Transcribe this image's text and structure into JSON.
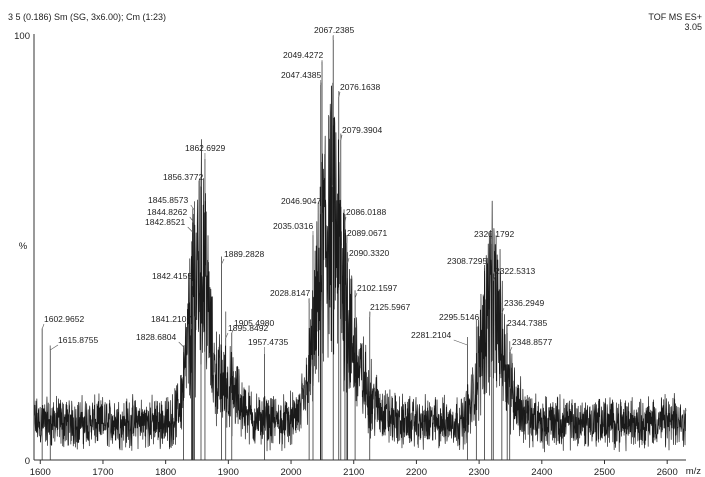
{
  "header": {
    "left": "3 5 (0.186) Sm (SG, 3x6.00); Cm (1:23)",
    "right": "TOF MS ES+",
    "right_sub": "3.05"
  },
  "chart_data": {
    "type": "line",
    "title": "",
    "xlabel": "m/z",
    "ylabel": "%",
    "xlim": [
      1590,
      2630
    ],
    "ylim": [
      0,
      100
    ],
    "x_ticks": [
      "1600",
      "1700",
      "1800",
      "1900",
      "2000",
      "2100",
      "2200",
      "2300",
      "2400",
      "2500",
      "2600"
    ],
    "y_ticks": [
      "0",
      "100"
    ],
    "grid": false,
    "peaks": [
      {
        "mz": 1602.9652,
        "label": "1602.9652",
        "intensity": 31
      },
      {
        "mz": 1615.8755,
        "label": "1615.8755",
        "intensity": 27
      },
      {
        "mz": 1828.6804,
        "label": "1828.6804",
        "intensity": 27
      },
      {
        "mz": 1841.2107,
        "label": "1841.2107",
        "intensity": 31
      },
      {
        "mz": 1842.4155,
        "label": "1842.4155",
        "intensity": 41
      },
      {
        "mz": 1842.8521,
        "label": "1842.8521",
        "intensity": 56
      },
      {
        "mz": 1844.8262,
        "label": "1844.8262",
        "intensity": 58
      },
      {
        "mz": 1845.8573,
        "label": "1845.8573",
        "intensity": 61
      },
      {
        "mz": 1856.3772,
        "label": "1856.3772",
        "intensity": 66
      },
      {
        "mz": 1862.6929,
        "label": "1862.6929",
        "intensity": 71
      },
      {
        "mz": 1889.2828,
        "label": "1889.2828",
        "intensity": 48
      },
      {
        "mz": 1895.8492,
        "label": "1895.8492",
        "intensity": 35
      },
      {
        "mz": 1905.498,
        "label": "1905.4980",
        "intensity": 30
      },
      {
        "mz": 1957.4735,
        "label": "1957.4735",
        "intensity": 25
      },
      {
        "mz": 2028.8147,
        "label": "2028.8147",
        "intensity": 38
      },
      {
        "mz": 2035.0316,
        "label": "2035.0316",
        "intensity": 53
      },
      {
        "mz": 2046.9047,
        "label": "2046.9047",
        "intensity": 58
      },
      {
        "mz": 2047.4385,
        "label": "2047.4385",
        "intensity": 89
      },
      {
        "mz": 2049.4272,
        "label": "2049.4272",
        "intensity": 94
      },
      {
        "mz": 2067.2385,
        "label": "2067.2385",
        "intensity": 100
      },
      {
        "mz": 2076.1638,
        "label": "2076.1638",
        "intensity": 87
      },
      {
        "mz": 2079.3904,
        "label": "2079.3904",
        "intensity": 77
      },
      {
        "mz": 2086.0188,
        "label": "2086.0188",
        "intensity": 58
      },
      {
        "mz": 2089.0671,
        "label": "2089.0671",
        "intensity": 53
      },
      {
        "mz": 2090.332,
        "label": "2090.3320",
        "intensity": 49
      },
      {
        "mz": 2102.1597,
        "label": "2102.1597",
        "intensity": 40
      },
      {
        "mz": 2125.5967,
        "label": "2125.5967",
        "intensity": 35
      },
      {
        "mz": 2281.2104,
        "label": "2281.2104",
        "intensity": 29
      },
      {
        "mz": 2295.5146,
        "label": "2295.5146",
        "intensity": 33
      },
      {
        "mz": 2308.7295,
        "label": "2308.7295",
        "intensity": 46
      },
      {
        "mz": 2320.1792,
        "label": "2320.1792",
        "intensity": 52
      },
      {
        "mz": 2322.5313,
        "label": "2322.5313",
        "intensity": 44
      },
      {
        "mz": 2336.2949,
        "label": "2336.2949",
        "intensity": 37
      },
      {
        "mz": 2344.7385,
        "label": "2344.7385",
        "intensity": 32
      },
      {
        "mz": 2348.8577,
        "label": "2348.8577",
        "intensity": 28
      }
    ]
  }
}
